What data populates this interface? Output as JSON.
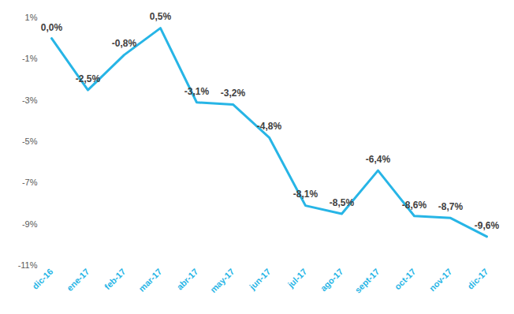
{
  "chart_data": {
    "type": "line",
    "categories": [
      "dic-16",
      "ene-17",
      "feb-17",
      "mar-17",
      "abr-17",
      "may-17",
      "jun-17",
      "jul-17",
      "ago-17",
      "sept-17",
      "oct-17",
      "nov-17",
      "dic-17"
    ],
    "values": [
      0.0,
      -2.5,
      -0.8,
      0.5,
      -3.1,
      -3.2,
      -4.8,
      -8.1,
      -8.5,
      -6.4,
      -8.6,
      -8.7,
      -9.6
    ],
    "value_labels": [
      "0,0%",
      "-2,5%",
      "-0,8%",
      "0,5%",
      "-3,1%",
      "-3,2%",
      "-4,8%",
      "-8,1%",
      "-8,5%",
      "-6,4%",
      "-8,6%",
      "-8,7%",
      "-9,6%"
    ],
    "color": "#27b5e6",
    "ylim": [
      -11,
      1
    ],
    "yticks": [
      {
        "value": 1,
        "label": "1%"
      },
      {
        "value": -1,
        "label": "-1%"
      },
      {
        "value": -3,
        "label": "-3%"
      },
      {
        "value": -5,
        "label": "-5%"
      },
      {
        "value": -7,
        "label": "-7%"
      },
      {
        "value": -9,
        "label": "-9%"
      },
      {
        "value": -11,
        "label": "-11%"
      }
    ],
    "grid": false,
    "data_labels": true
  }
}
